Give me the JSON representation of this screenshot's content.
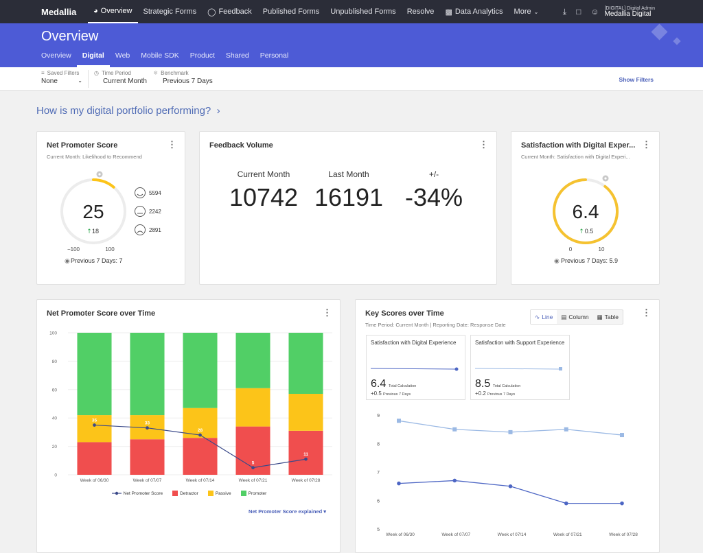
{
  "nav": {
    "logo": "Medallia",
    "items": [
      {
        "label": "Overview",
        "icon": "dashboard-icon"
      },
      {
        "label": "Strategic Forms"
      },
      {
        "label": "Feedback",
        "icon": "speech-bubble-icon"
      },
      {
        "label": "Published Forms"
      },
      {
        "label": "Unpublished Forms"
      },
      {
        "label": "Resolve"
      },
      {
        "label": "Data Analytics",
        "icon": "bar-chart-icon"
      },
      {
        "label": "More",
        "icon": "chevron-down-icon"
      }
    ],
    "user_role": "[DIGITAL] Digital Admin",
    "user_org": "Medallia Digital"
  },
  "banner": {
    "title": "Overview",
    "tabs": [
      "Overview",
      "Digital",
      "Web",
      "Mobile SDK",
      "Product",
      "Shared",
      "Personal"
    ],
    "active_tab": "Digital",
    "color": "#4d5bd6"
  },
  "filters": {
    "saved_filters_label": "Saved Filters",
    "saved_filters_value": "None",
    "time_period_label": "Time Period",
    "time_period_value": "Current Month",
    "benchmark_label": "Benchmark",
    "benchmark_value": "Previous 7 Days",
    "show_filters": "Show Filters"
  },
  "question": "How is my digital portfolio performing?",
  "nps_card": {
    "title": "Net Promoter Score",
    "subtitle": "Current Month: Likelihood to Recommend",
    "score": "25",
    "change": "18",
    "min": "−100",
    "max": "100",
    "promoters": "5594",
    "passives": "2242",
    "detractors": "2891",
    "previous": "Previous 7 Days: 7"
  },
  "volume_card": {
    "title": "Feedback Volume",
    "current_label": "Current Month",
    "current_value": "10742",
    "last_label": "Last Month",
    "last_value": "16191",
    "diff_label": "+/-",
    "diff_value": "-34%"
  },
  "sat_card": {
    "title": "Satisfaction with Digital Exper...",
    "subtitle": "Current Month: Satisfaction with Digital Experi...",
    "score": "6.4",
    "change": "0.5",
    "min": "0",
    "max": "10",
    "previous": "Previous 7 Days: 5.9"
  },
  "nps_time": {
    "title": "Net Promoter Score over Time",
    "explain": "Net Promoter Score explained ▾",
    "legend": [
      "Net Promoter Score",
      "Detractor",
      "Passive",
      "Promoter"
    ]
  },
  "key_scores": {
    "title": "Key Scores over Time",
    "subtitle": "Time Period: Current Month | Reporting Date: Response Date",
    "toggle": [
      "Line",
      "Column",
      "Table"
    ],
    "mini1": {
      "title": "Satisfaction with Digital Experience",
      "value": "6.4",
      "value_label": "Total Calculation",
      "delta": "+0.5",
      "delta_label": "Previous 7 Days"
    },
    "mini2": {
      "title": "Satisfaction with Support Experience",
      "value": "8.5",
      "value_label": "Total Calculation",
      "delta": "+0.2",
      "delta_label": "Previous 7 Days"
    }
  },
  "chart_data": [
    {
      "type": "bar",
      "stacked": true,
      "categories": [
        "Week of 06/30",
        "Week of 07/07",
        "Week of 07/14",
        "Week of 07/21",
        "Week of 07/28"
      ],
      "ylim": [
        0,
        100
      ],
      "yticks": [
        0,
        20,
        40,
        60,
        80,
        100
      ],
      "series": [
        {
          "name": "Detractor",
          "color": "#f04e4e",
          "values": [
            23,
            25,
            26,
            34,
            31
          ]
        },
        {
          "name": "Passive",
          "color": "#fcc419",
          "values": [
            19,
            17,
            21,
            27,
            26
          ]
        },
        {
          "name": "Promoter",
          "color": "#51cf66",
          "values": [
            58,
            58,
            53,
            39,
            43
          ]
        }
      ],
      "line": {
        "name": "Net Promoter Score",
        "color": "#3b4a8a",
        "values": [
          35,
          33,
          28,
          5,
          11
        ]
      },
      "grid": true,
      "legend": "bottom"
    },
    {
      "type": "line",
      "categories": [
        "Week of 06/30",
        "Week of 07/07",
        "Week of 07/14",
        "Week of 07/21",
        "Week of 07/28"
      ],
      "ylim": [
        5,
        9
      ],
      "yticks": [
        5,
        6,
        7,
        8,
        9
      ],
      "series": [
        {
          "color": "#9bb9e4",
          "marker": "square",
          "values": [
            8.8,
            8.5,
            8.4,
            8.5,
            8.3
          ]
        },
        {
          "color": "#4d66c4",
          "marker": "circle",
          "values": [
            6.6,
            6.7,
            6.5,
            5.9,
            5.9
          ]
        }
      ],
      "grid": false
    }
  ]
}
